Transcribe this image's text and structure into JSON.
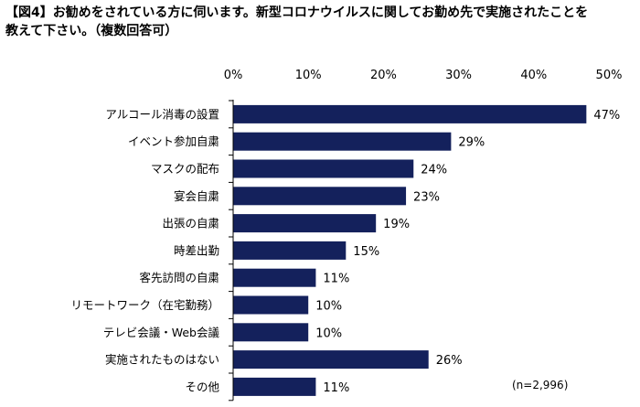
{
  "title": {
    "line1": "【図4】お勧めをされている方に伺います。新型コロナウイルスに関してお勤め先で実施されたことを",
    "line2": "教えて下さい。（複数回答可）"
  },
  "sample_note": "(n=2,996)",
  "colors": {
    "bar": "#14215c",
    "axis": "#000000"
  },
  "chart_data": {
    "type": "bar",
    "orientation": "horizontal",
    "title": "【図4】お勧めをされている方に伺います。新型コロナウイルスに関してお勤め先で実施されたことを教えて下さい。（複数回答可）",
    "categories": [
      "アルコール消毒の設置",
      "イベント参加自粛",
      "マスクの配布",
      "宴会自粛",
      "出張の自粛",
      "時差出勤",
      "客先訪問の自粛",
      "リモートワーク（在宅勤務）",
      "テレビ会議・Web会議",
      "実施されたものはない",
      "その他"
    ],
    "values": [
      47,
      29,
      24,
      23,
      19,
      15,
      11,
      10,
      10,
      26,
      11
    ],
    "value_labels": [
      "47%",
      "29%",
      "24%",
      "23%",
      "19%",
      "15%",
      "11%",
      "10%",
      "10%",
      "26%",
      "11%"
    ],
    "xticks": [
      "0%",
      "10%",
      "20%",
      "30%",
      "40%",
      "50%"
    ],
    "xlim": [
      0,
      50
    ],
    "tick_position": "top",
    "grid": false,
    "legend": "none"
  }
}
